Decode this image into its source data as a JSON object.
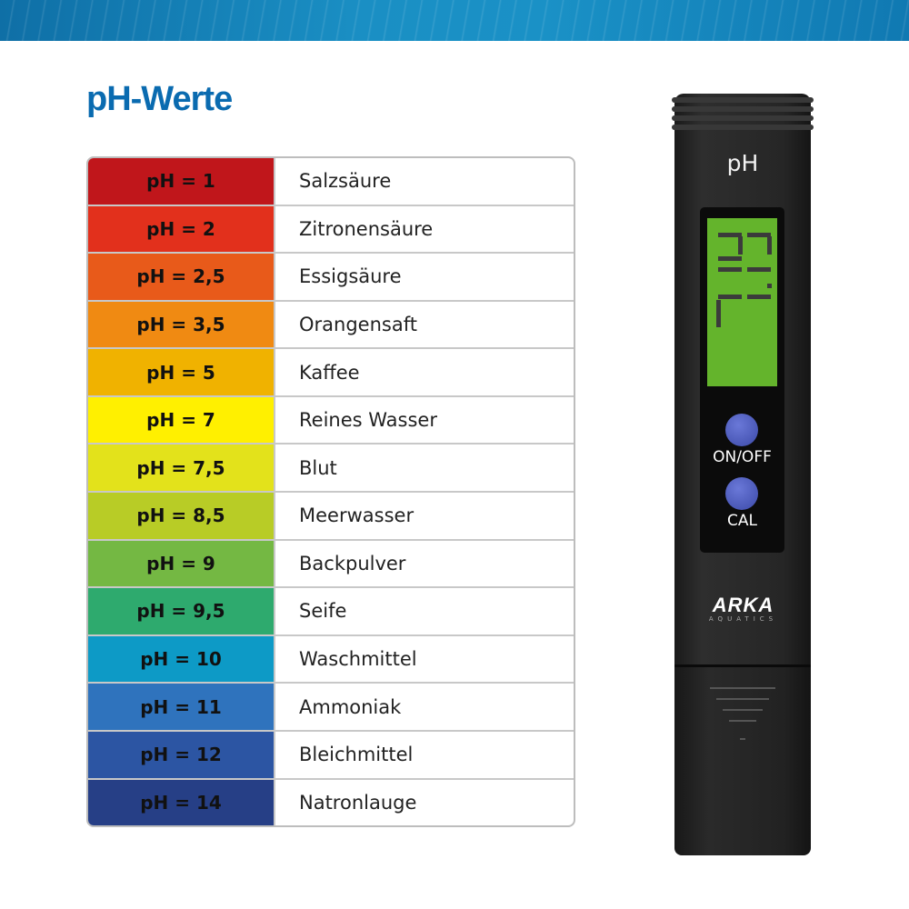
{
  "title": "pH-Werte",
  "table": {
    "rows": [
      {
        "ph": "pH = 1",
        "substance": "Salzsäure",
        "color": "#c0161b"
      },
      {
        "ph": "pH = 2",
        "substance": "Zitronensäure",
        "color": "#e2301c"
      },
      {
        "ph": "pH = 2,5",
        "substance": "Essigsäure",
        "color": "#e85a1a"
      },
      {
        "ph": "pH = 3,5",
        "substance": "Orangensaft",
        "color": "#f08a12"
      },
      {
        "ph": "pH = 5",
        "substance": "Kaffee",
        "color": "#f0b200"
      },
      {
        "ph": "pH = 7",
        "substance": "Reines Wasser",
        "color": "#fff000"
      },
      {
        "ph": "pH = 7,5",
        "substance": "Blut",
        "color": "#e3e21b"
      },
      {
        "ph": "pH = 8,5",
        "substance": "Meerwasser",
        "color": "#b8cc26"
      },
      {
        "ph": "pH = 9",
        "substance": "Backpulver",
        "color": "#74b843"
      },
      {
        "ph": "pH = 9,5",
        "substance": "Seife",
        "color": "#2eaa6e"
      },
      {
        "ph": "pH = 10",
        "substance": "Waschmittel",
        "color": "#0d9ac6"
      },
      {
        "ph": "pH = 11",
        "substance": "Ammoniak",
        "color": "#2f73bd"
      },
      {
        "ph": "pH = 12",
        "substance": "Bleichmittel",
        "color": "#2c55a3"
      },
      {
        "ph": "pH = 14",
        "substance": "Natronlauge",
        "color": "#263f86"
      }
    ]
  },
  "meter": {
    "label": "pH",
    "on_off": "ON/OFF",
    "cal": "CAL",
    "brand": "ARKA",
    "brand_sub": "AQUATICS",
    "lcd_color": "#64b42c",
    "button_color": "#4a58c0"
  }
}
